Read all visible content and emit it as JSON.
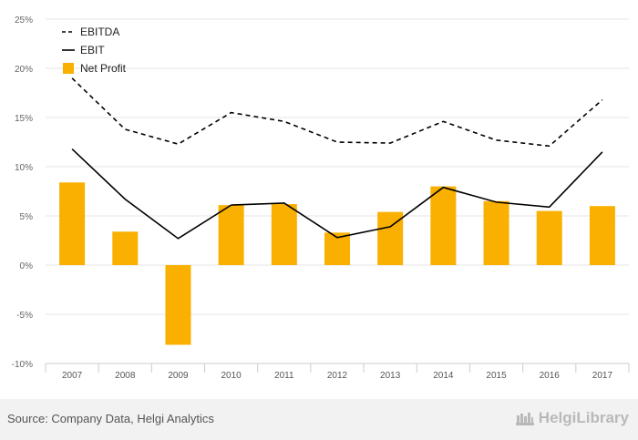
{
  "chart_data": {
    "type": "bar",
    "categories": [
      "2007",
      "2008",
      "2009",
      "2010",
      "2011",
      "2012",
      "2013",
      "2014",
      "2015",
      "2016",
      "2017"
    ],
    "ylim": [
      -10,
      25
    ],
    "yticks": [
      25,
      20,
      15,
      10,
      5,
      0,
      -5,
      -10
    ],
    "ytick_labels": [
      "25%",
      "20%",
      "15%",
      "10%",
      "5%",
      "0%",
      "-5%",
      "-10%"
    ],
    "grid": true,
    "legend_position": "top-left",
    "series": [
      {
        "name": "EBITDA",
        "type": "line",
        "style": "dashed",
        "color": "#000000",
        "values": [
          19.0,
          13.8,
          12.3,
          15.5,
          14.6,
          12.5,
          12.4,
          14.6,
          12.7,
          12.1,
          16.8
        ]
      },
      {
        "name": "EBIT",
        "type": "line",
        "style": "solid",
        "color": "#000000",
        "values": [
          11.8,
          6.7,
          2.7,
          6.1,
          6.3,
          2.8,
          3.9,
          7.9,
          6.4,
          5.9,
          11.5
        ]
      },
      {
        "name": "Net Profit",
        "type": "bar",
        "color": "#f9b000",
        "values": [
          8.4,
          3.4,
          -8.1,
          6.1,
          6.2,
          3.3,
          5.4,
          8.0,
          6.5,
          5.5,
          6.0
        ]
      }
    ]
  },
  "footer": {
    "source": "Source: Company Data, Helgi Analytics",
    "brand_logo_text": "HelgiLibrary"
  }
}
